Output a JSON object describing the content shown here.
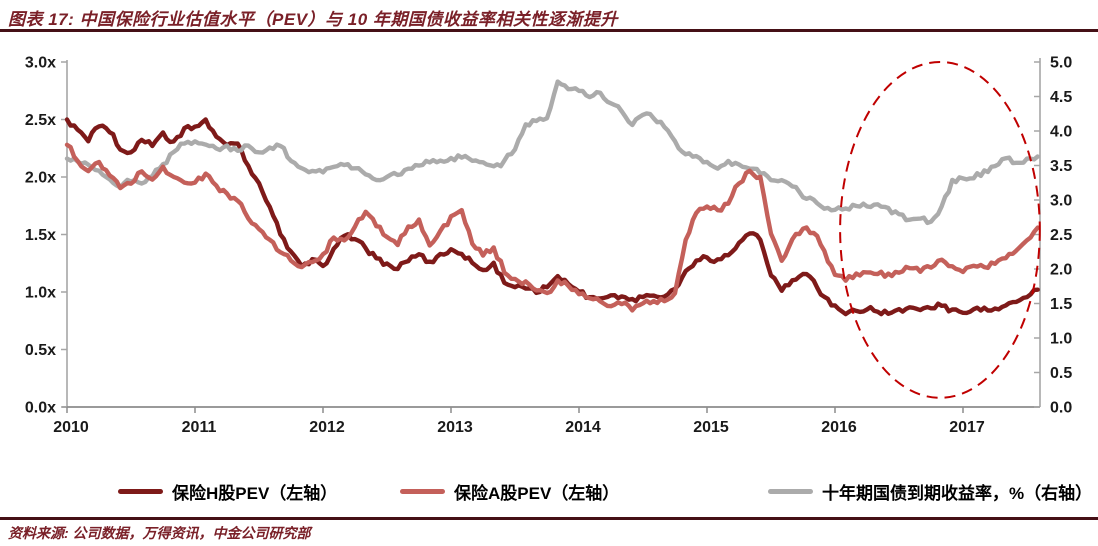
{
  "header": {
    "title": "图表 17:  中国保险行业估值水平（PEV）与 10 年期国债收益率相关性逐渐提升"
  },
  "footer": {
    "source": "资料来源: 公司数据，万得资讯，中金公司研究部"
  },
  "colors": {
    "title_maroon": "#7a2028",
    "rule_maroon": "#451016",
    "axis_gray": "#a6a6a6",
    "tick_text": "#1a1a1a",
    "ellipse_red": "#c00000"
  },
  "legend": {
    "items": [
      {
        "label": "保险H股PEV（左轴）",
        "color": "#7e1a19"
      },
      {
        "label": "保险A股PEV（左轴）",
        "color": "#c4605a"
      },
      {
        "label": "十年期国债到期收益率，%（右轴）",
        "color": "#ababab"
      }
    ]
  },
  "chart_data": {
    "type": "line",
    "title": "中国保险行业估值水平（PEV）与10年期国债收益率",
    "x_start_year": 2010,
    "x_step_months": 1,
    "x_tick_labels": [
      "2010",
      "2011",
      "2012",
      "2013",
      "2014",
      "2015",
      "2016",
      "2017"
    ],
    "left_axis": {
      "ticks": [
        "0.0x",
        "0.5x",
        "1.0x",
        "1.5x",
        "2.0x",
        "2.5x",
        "3.0x"
      ],
      "range": [
        0,
        3
      ]
    },
    "right_axis": {
      "ticks": [
        "0.0",
        "0.5",
        "1.0",
        "1.5",
        "2.0",
        "2.5",
        "3.0",
        "3.5",
        "4.0",
        "4.5",
        "5.0"
      ],
      "range": [
        0,
        5
      ]
    },
    "grid": false,
    "legend_position": "bottom",
    "series": [
      {
        "name": "保险H股PEV（左轴）",
        "axis": "left",
        "color": "#7e1a19",
        "values": [
          2.5,
          2.4,
          2.32,
          2.45,
          2.4,
          2.25,
          2.22,
          2.32,
          2.28,
          2.38,
          2.3,
          2.42,
          2.45,
          2.5,
          2.35,
          2.28,
          2.3,
          2.1,
          1.95,
          1.75,
          1.5,
          1.35,
          1.22,
          1.28,
          1.22,
          1.38,
          1.5,
          1.45,
          1.38,
          1.3,
          1.24,
          1.2,
          1.28,
          1.32,
          1.26,
          1.32,
          1.36,
          1.34,
          1.25,
          1.18,
          1.25,
          1.08,
          1.05,
          1.02,
          1.0,
          1.05,
          1.15,
          1.08,
          1.0,
          0.96,
          0.95,
          0.97,
          0.95,
          0.93,
          0.96,
          0.98,
          0.97,
          1.02,
          1.18,
          1.28,
          1.3,
          1.28,
          1.32,
          1.42,
          1.52,
          1.45,
          1.15,
          1.02,
          1.1,
          1.15,
          1.1,
          0.95,
          0.88,
          0.8,
          0.84,
          0.86,
          0.83,
          0.82,
          0.85,
          0.86,
          0.85,
          0.87,
          0.88,
          0.84,
          0.83,
          0.86,
          0.86,
          0.85,
          0.88,
          0.92,
          0.95,
          1.02
        ]
      },
      {
        "name": "保险A股PEV（左轴）",
        "axis": "left",
        "color": "#c4605a",
        "values": [
          2.28,
          2.15,
          2.05,
          2.12,
          2.02,
          1.9,
          1.95,
          2.05,
          1.98,
          2.08,
          2.0,
          1.95,
          1.95,
          2.02,
          1.92,
          1.85,
          1.8,
          1.63,
          1.55,
          1.45,
          1.35,
          1.28,
          1.22,
          1.25,
          1.32,
          1.48,
          1.45,
          1.58,
          1.7,
          1.58,
          1.48,
          1.42,
          1.56,
          1.62,
          1.4,
          1.52,
          1.65,
          1.7,
          1.42,
          1.32,
          1.38,
          1.18,
          1.12,
          1.08,
          1.02,
          0.98,
          1.1,
          1.05,
          0.98,
          0.95,
          0.92,
          0.88,
          0.9,
          0.85,
          0.9,
          0.93,
          0.92,
          1.0,
          1.45,
          1.7,
          1.75,
          1.7,
          1.78,
          1.95,
          2.05,
          2.0,
          1.5,
          1.28,
          1.45,
          1.55,
          1.52,
          1.35,
          1.15,
          1.1,
          1.16,
          1.18,
          1.16,
          1.15,
          1.18,
          1.2,
          1.18,
          1.22,
          1.28,
          1.22,
          1.18,
          1.22,
          1.22,
          1.25,
          1.3,
          1.35,
          1.45,
          1.56
        ]
      },
      {
        "name": "十年期国债到期收益率，%（右轴）",
        "axis": "right",
        "color": "#ababab",
        "values": [
          3.6,
          3.55,
          3.5,
          3.42,
          3.3,
          3.2,
          3.28,
          3.25,
          3.35,
          3.5,
          3.7,
          3.82,
          3.85,
          3.8,
          3.75,
          3.78,
          3.72,
          3.78,
          3.7,
          3.75,
          3.8,
          3.55,
          3.45,
          3.42,
          3.42,
          3.48,
          3.52,
          3.45,
          3.38,
          3.3,
          3.32,
          3.38,
          3.45,
          3.5,
          3.55,
          3.58,
          3.6,
          3.62,
          3.58,
          3.55,
          3.48,
          3.55,
          3.75,
          4.1,
          4.15,
          4.2,
          4.7,
          4.6,
          4.6,
          4.5,
          4.55,
          4.4,
          4.3,
          4.1,
          4.25,
          4.2,
          4.05,
          3.85,
          3.65,
          3.62,
          3.55,
          3.45,
          3.55,
          3.5,
          3.45,
          3.4,
          3.3,
          3.3,
          3.2,
          3.05,
          3.0,
          2.88,
          2.86,
          2.88,
          2.9,
          2.92,
          2.95,
          2.88,
          2.78,
          2.72,
          2.72,
          2.68,
          2.9,
          3.28,
          3.3,
          3.32,
          3.42,
          3.48,
          3.62,
          3.55,
          3.58,
          3.63
        ]
      }
    ],
    "annotation_ellipse": {
      "color": "#c00000",
      "x_center_year": 2016.82,
      "x_radius_years": 0.78,
      "y_center_left_value": 1.54,
      "y_radius_left_value": 1.46,
      "note": "dashed ellipse highlighting 2016-2017 rising correlation"
    }
  }
}
